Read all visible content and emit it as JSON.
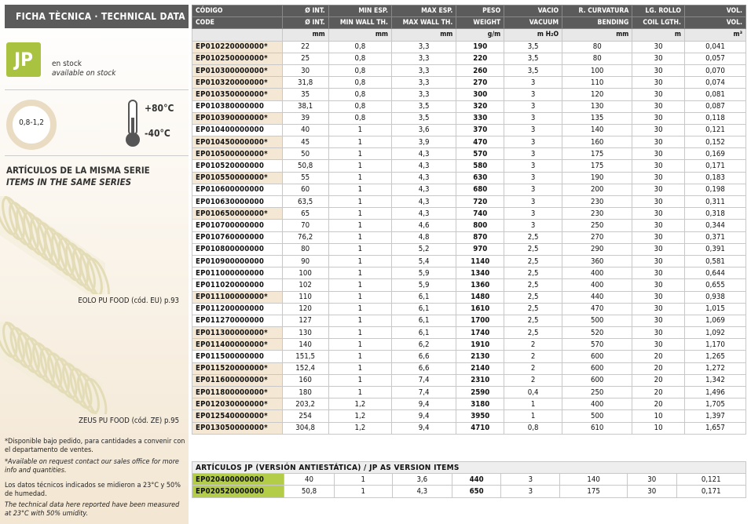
{
  "sidebar": {
    "title": "FICHA TÈCNICA · TECHNICAL DATA",
    "badge": "JP",
    "stock_es": "en stock",
    "stock_en": "available on stock",
    "thickness": "0,8-1,2",
    "temp_max": "+80°C",
    "temp_min": "-40°C",
    "series_title_es": "ARTÍCULOS DE LA MISMA SERIE",
    "series_title_en": "ITEMS IN THE SAME SERIES",
    "related": [
      "EOLO PU FOOD (cód. EU) p.93",
      "ZEUS PU FOOD (cód. ZE) p.95"
    ],
    "notes": [
      "*Disponible bajo pedido, para cantidades a convenir con el departamento de ventes.",
      "*Available on request contact our sales office for more info and quantities.",
      "Los datos técnicos indicados se midieron a 23°C y 50% de humedad.",
      "The technical data here reported have been measured at 23°C with 50% umidity."
    ]
  },
  "table": {
    "header_es": [
      "CÓDIGO",
      "Ø INT.",
      "MIN ESP.",
      "MAX ESP.",
      "PESO",
      "VACIO",
      "R. CURVATURA",
      "LG. ROLLO",
      "VOL."
    ],
    "header_en": [
      "CODE",
      "Ø INT.",
      "MIN WALL TH.",
      "MAX WALL TH.",
      "WEIGHT",
      "VACUUM",
      "BENDING",
      "COIL LGTH.",
      "VOL."
    ],
    "units": [
      "mm",
      "mm",
      "mm",
      "g/m",
      "m H₂O",
      "mm",
      "m",
      "m³"
    ],
    "rows": [
      [
        "EP010220000000*",
        "22",
        "0,8",
        "3,3",
        "190",
        "3,5",
        "80",
        "30",
        "0,041"
      ],
      [
        "EP010250000000*",
        "25",
        "0,8",
        "3,3",
        "220",
        "3,5",
        "80",
        "30",
        "0,057"
      ],
      [
        "EP010300000000*",
        "30",
        "0,8",
        "3,3",
        "260",
        "3,5",
        "100",
        "30",
        "0,070"
      ],
      [
        "EP010320000000*",
        "31,8",
        "0,8",
        "3,3",
        "270",
        "3",
        "110",
        "30",
        "0,074"
      ],
      [
        "EP010350000000*",
        "35",
        "0,8",
        "3,3",
        "300",
        "3",
        "120",
        "30",
        "0,081"
      ],
      [
        "EP010380000000",
        "38,1",
        "0,8",
        "3,5",
        "320",
        "3",
        "130",
        "30",
        "0,087"
      ],
      [
        "EP010390000000*",
        "39",
        "0,8",
        "3,5",
        "330",
        "3",
        "135",
        "30",
        "0,118"
      ],
      [
        "EP010400000000",
        "40",
        "1",
        "3,6",
        "370",
        "3",
        "140",
        "30",
        "0,121"
      ],
      [
        "EP010450000000*",
        "45",
        "1",
        "3,9",
        "470",
        "3",
        "160",
        "30",
        "0,152"
      ],
      [
        "EP010500000000*",
        "50",
        "1",
        "4,3",
        "570",
        "3",
        "175",
        "30",
        "0,169"
      ],
      [
        "EP010520000000",
        "50,8",
        "1",
        "4,3",
        "580",
        "3",
        "175",
        "30",
        "0,171"
      ],
      [
        "EP010550000000*",
        "55",
        "1",
        "4,3",
        "630",
        "3",
        "190",
        "30",
        "0,183"
      ],
      [
        "EP010600000000",
        "60",
        "1",
        "4,3",
        "680",
        "3",
        "200",
        "30",
        "0,198"
      ],
      [
        "EP010630000000",
        "63,5",
        "1",
        "4,3",
        "720",
        "3",
        "230",
        "30",
        "0,311"
      ],
      [
        "EP010650000000*",
        "65",
        "1",
        "4,3",
        "740",
        "3",
        "230",
        "30",
        "0,318"
      ],
      [
        "EP010700000000",
        "70",
        "1",
        "4,6",
        "800",
        "3",
        "250",
        "30",
        "0,344"
      ],
      [
        "EP010760000000",
        "76,2",
        "1",
        "4,8",
        "870",
        "2,5",
        "270",
        "30",
        "0,371"
      ],
      [
        "EP010800000000",
        "80",
        "1",
        "5,2",
        "970",
        "2,5",
        "290",
        "30",
        "0,391"
      ],
      [
        "EP010900000000",
        "90",
        "1",
        "5,4",
        "1140",
        "2,5",
        "360",
        "30",
        "0,581"
      ],
      [
        "EP011000000000",
        "100",
        "1",
        "5,9",
        "1340",
        "2,5",
        "400",
        "30",
        "0,644"
      ],
      [
        "EP011020000000",
        "102",
        "1",
        "5,9",
        "1360",
        "2,5",
        "400",
        "30",
        "0,655"
      ],
      [
        "EP011100000000*",
        "110",
        "1",
        "6,1",
        "1480",
        "2,5",
        "440",
        "30",
        "0,938"
      ],
      [
        "EP011200000000",
        "120",
        "1",
        "6,1",
        "1610",
        "2,5",
        "470",
        "30",
        "1,015"
      ],
      [
        "EP011270000000",
        "127",
        "1",
        "6,1",
        "1700",
        "2,5",
        "500",
        "30",
        "1,069"
      ],
      [
        "EP011300000000*",
        "130",
        "1",
        "6,1",
        "1740",
        "2,5",
        "520",
        "30",
        "1,092"
      ],
      [
        "EP011400000000*",
        "140",
        "1",
        "6,2",
        "1910",
        "2",
        "570",
        "30",
        "1,170"
      ],
      [
        "EP011500000000",
        "151,5",
        "1",
        "6,6",
        "2130",
        "2",
        "600",
        "20",
        "1,265"
      ],
      [
        "EP011520000000*",
        "152,4",
        "1",
        "6,6",
        "2140",
        "2",
        "600",
        "20",
        "1,272"
      ],
      [
        "EP011600000000*",
        "160",
        "1",
        "7,4",
        "2310",
        "2",
        "600",
        "20",
        "1,342"
      ],
      [
        "EP011800000000*",
        "180",
        "1",
        "7,4",
        "2590",
        "0,4",
        "250",
        "20",
        "1,496"
      ],
      [
        "EP012030000000*",
        "203,2",
        "1,2",
        "9,4",
        "3180",
        "1",
        "400",
        "20",
        "1,705"
      ],
      [
        "EP012540000000*",
        "254",
        "1,2",
        "9,4",
        "3950",
        "1",
        "500",
        "10",
        "1,397"
      ],
      [
        "EP013050000000*",
        "304,8",
        "1,2",
        "9,4",
        "4710",
        "0,8",
        "610",
        "10",
        "1,657"
      ]
    ]
  },
  "jp_table": {
    "title": "ARTÍCULOS JP (VERSIÓN ANTIESTÁTICA) / JP AS VERSION ITEMS",
    "rows": [
      [
        "EP020400000000",
        "40",
        "1",
        "3,6",
        "440",
        "3",
        "140",
        "30",
        "0,121"
      ],
      [
        "EP020520000000",
        "50,8",
        "1",
        "4,3",
        "650",
        "3",
        "175",
        "30",
        "0,171"
      ]
    ]
  }
}
